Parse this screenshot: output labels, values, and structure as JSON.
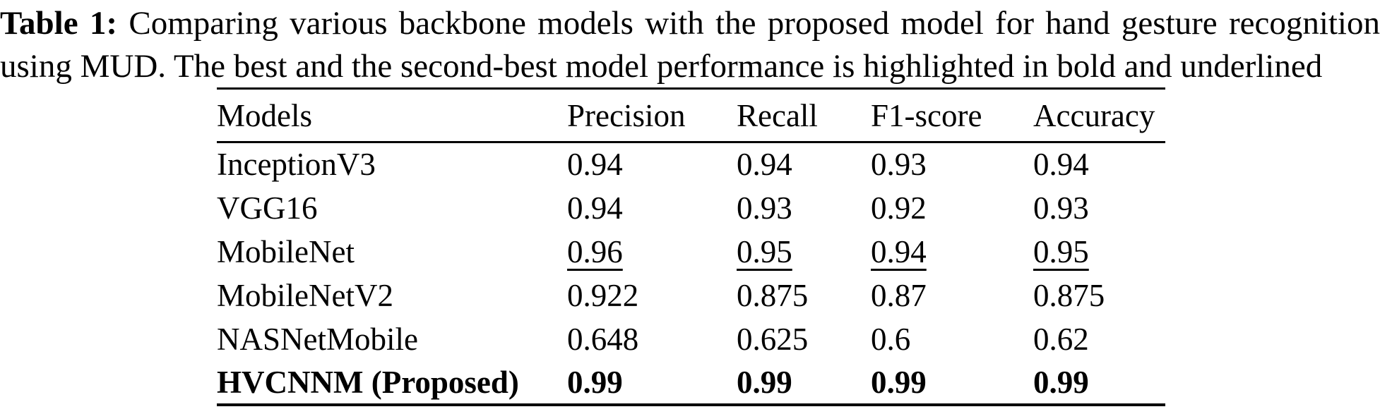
{
  "caption": {
    "label": "Table 1:",
    "line1": "Comparing various backbone models with the proposed model for hand gesture recognition",
    "line2": "using MUD. The best and the second-best model performance is highlighted in bold and underlined"
  },
  "table": {
    "columns": [
      "Models",
      "Precision",
      "Recall",
      "F1-score",
      "Accuracy"
    ],
    "rows": [
      {
        "model": "InceptionV3",
        "values": [
          "0.94",
          "0.94",
          "0.93",
          "0.94"
        ],
        "emphasis": "none"
      },
      {
        "model": "VGG16",
        "values": [
          "0.94",
          "0.93",
          "0.92",
          "0.93"
        ],
        "emphasis": "none"
      },
      {
        "model": "MobileNet",
        "values": [
          "0.96",
          "0.95",
          "0.94",
          "0.95"
        ],
        "emphasis": "underline"
      },
      {
        "model": "MobileNetV2",
        "values": [
          "0.922",
          "0.875",
          "0.87",
          "0.875"
        ],
        "emphasis": "none"
      },
      {
        "model": "NASNetMobile",
        "values": [
          "0.648",
          "0.625",
          "0.6",
          "0.62"
        ],
        "emphasis": "none"
      },
      {
        "model": "HVCNNM (Proposed)",
        "values": [
          "0.99",
          "0.99",
          "0.99",
          "0.99"
        ],
        "emphasis": "bold"
      }
    ]
  },
  "colors": {
    "text": "#000000",
    "background": "#ffffff"
  },
  "chart_data": {
    "type": "table",
    "title": "Table 1: Comparing various backbone models with the proposed model for hand gesture recognition using MUD. The best and the second-best model performance is highlighted in bold and underlined",
    "columns": [
      "Models",
      "Precision",
      "Recall",
      "F1-score",
      "Accuracy"
    ],
    "rows": [
      [
        "InceptionV3",
        0.94,
        0.94,
        0.93,
        0.94
      ],
      [
        "VGG16",
        0.94,
        0.93,
        0.92,
        0.93
      ],
      [
        "MobileNet",
        0.96,
        0.95,
        0.94,
        0.95
      ],
      [
        "MobileNetV2",
        0.922,
        0.875,
        0.87,
        0.875
      ],
      [
        "NASNetMobile",
        0.648,
        0.625,
        0.6,
        0.62
      ],
      [
        "HVCNNM (Proposed)",
        0.99,
        0.99,
        0.99,
        0.99
      ]
    ]
  }
}
